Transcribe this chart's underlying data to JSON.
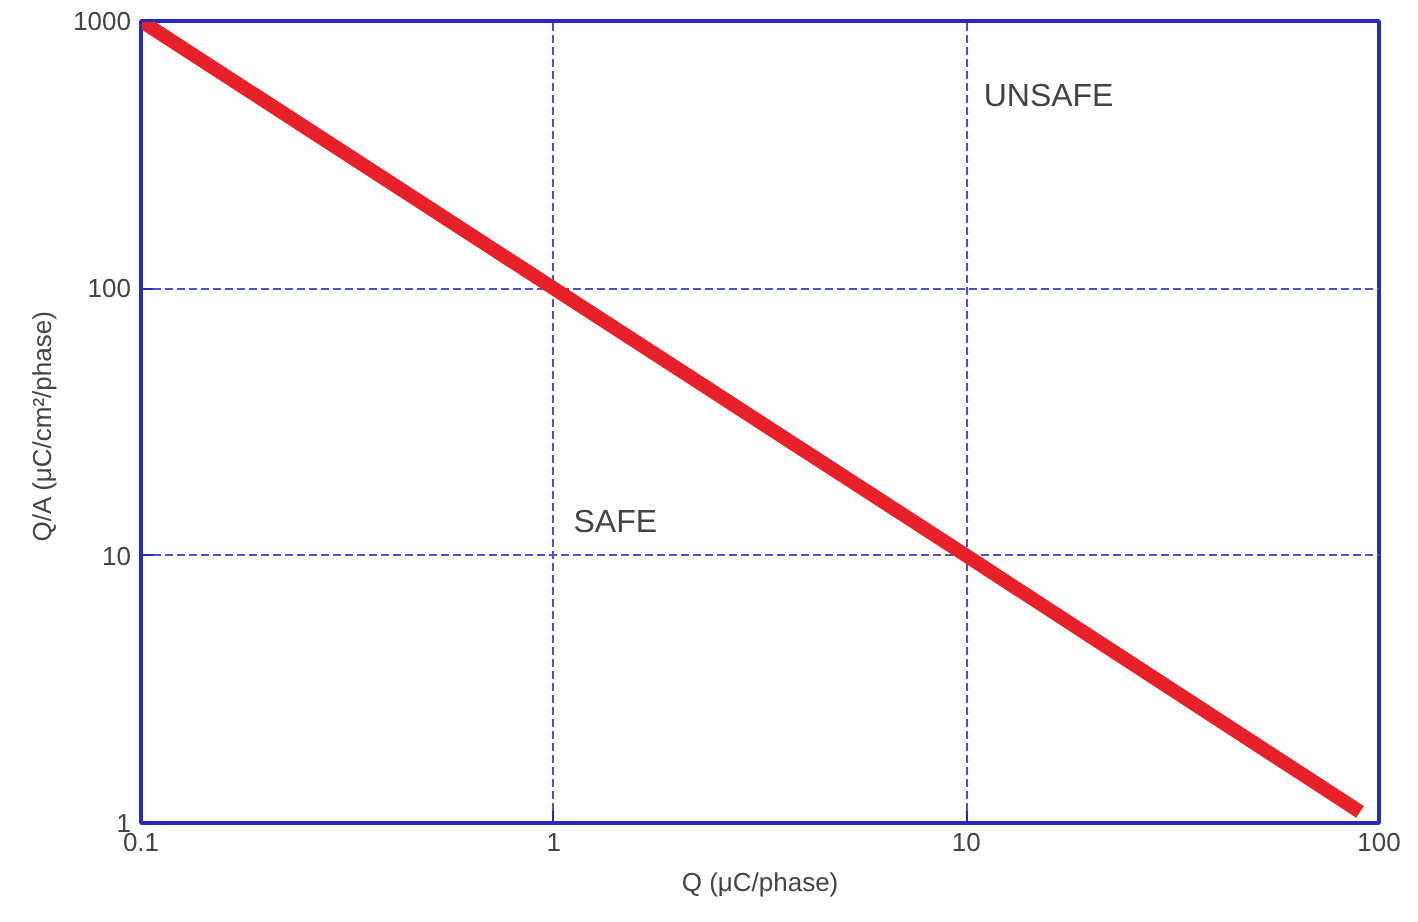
{
  "chart_data": {
    "type": "line",
    "xlabel": "Q (μC/phase)",
    "ylabel": "Q/A  (μC/cm²/phase)",
    "log": "xy",
    "xlim": [
      0.1,
      100
    ],
    "ylim": [
      1,
      1000
    ],
    "xticks": [
      0.1,
      1,
      10,
      100
    ],
    "yticks": [
      1,
      10,
      100,
      1000
    ],
    "grid": true,
    "marker": "none",
    "line_style": "solid",
    "series": [
      {
        "color": "#e8202a",
        "x": [
          0.1,
          1,
          10,
          90
        ],
        "values": [
          1000,
          100,
          10,
          1.1
        ]
      }
    ],
    "annotations": [
      "UNSAFE",
      "SAFE"
    ]
  }
}
